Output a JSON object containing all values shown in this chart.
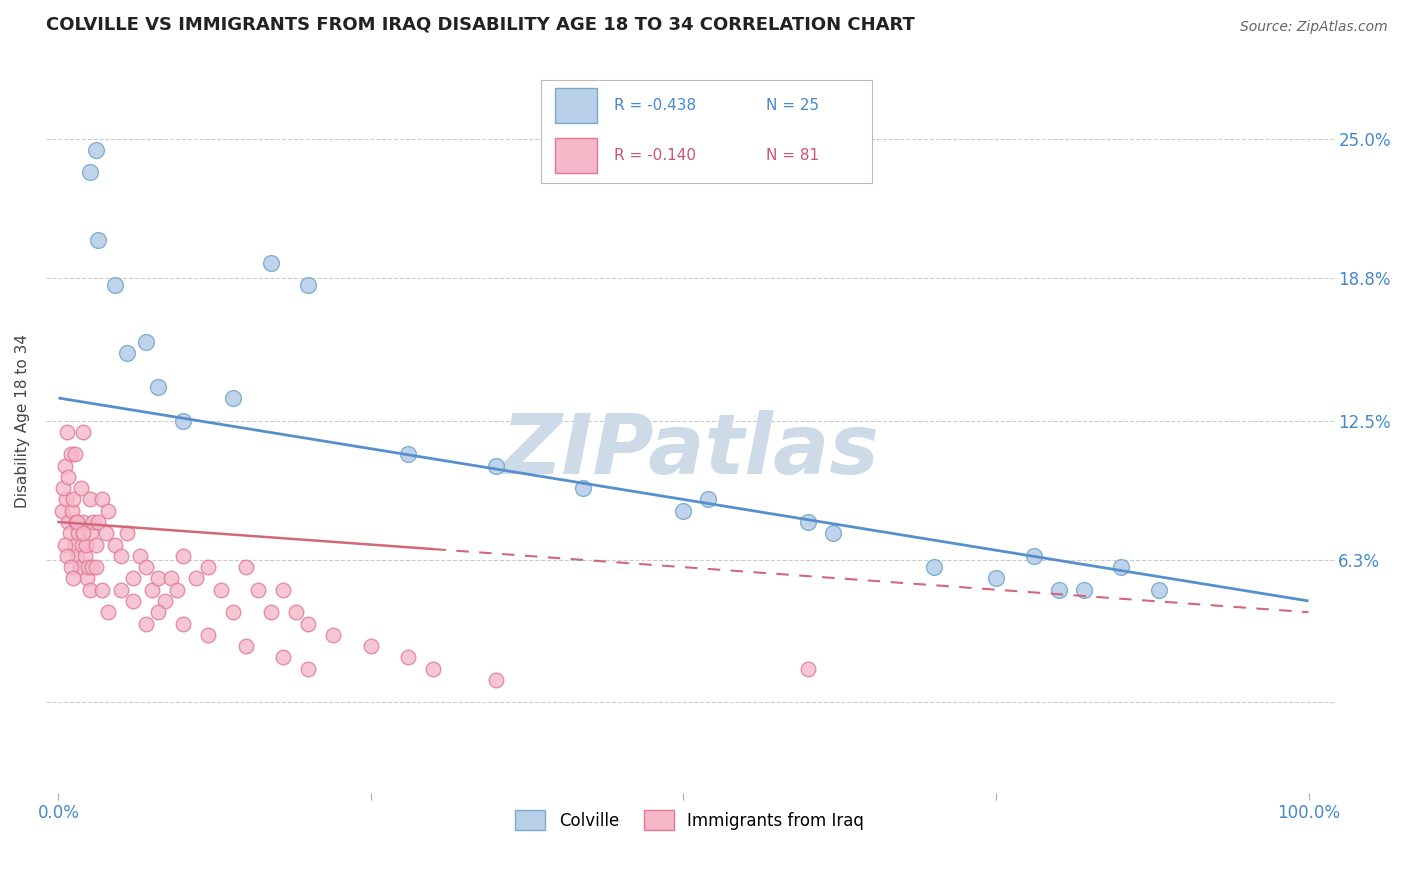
{
  "title": "COLVILLE VS IMMIGRANTS FROM IRAQ DISABILITY AGE 18 TO 34 CORRELATION CHART",
  "source": "Source: ZipAtlas.com",
  "ylabel": "Disability Age 18 to 34",
  "colville_color": "#b8d0e8",
  "colville_edge": "#7aaad0",
  "iraq_color": "#f5b8c8",
  "iraq_edge": "#e07898",
  "blue_line_color": "#5590cc",
  "pink_line_color": "#d06878",
  "watermark": "ZIPatlas",
  "watermark_color": "#cddbe8",
  "legend_R_colville": "R = -0.438",
  "legend_N_colville": "N = 25",
  "legend_R_iraq": "R = -0.140",
  "legend_N_iraq": "N = 81",
  "colville_label": "Colville",
  "iraq_label": "Immigrants from Iraq",
  "blue_text_color": "#4488cc",
  "pink_text_color": "#cc5577",
  "colville_x": [
    2.5,
    3.0,
    3.2,
    4.5,
    5.5,
    7.0,
    8.0,
    10.0,
    14.0,
    17.0,
    20.0,
    28.0,
    35.0,
    42.0,
    50.0,
    52.0,
    60.0,
    62.0,
    70.0,
    75.0,
    78.0,
    80.0,
    82.0,
    85.0,
    88.0
  ],
  "colville_y": [
    23.5,
    24.5,
    20.5,
    18.5,
    15.5,
    16.0,
    14.0,
    12.5,
    13.5,
    19.5,
    18.5,
    11.0,
    10.5,
    9.5,
    8.5,
    9.0,
    8.0,
    7.5,
    6.0,
    5.5,
    6.5,
    5.0,
    5.0,
    6.0,
    5.0
  ],
  "iraq_x": [
    0.3,
    0.5,
    0.6,
    0.7,
    0.8,
    0.9,
    1.0,
    1.1,
    1.2,
    1.3,
    1.4,
    1.5,
    1.6,
    1.7,
    1.8,
    1.9,
    2.0,
    2.1,
    2.2,
    2.3,
    2.4,
    2.5,
    2.6,
    2.7,
    2.8,
    3.0,
    3.2,
    3.5,
    3.8,
    4.0,
    4.5,
    5.0,
    5.5,
    6.0,
    6.5,
    7.0,
    7.5,
    8.0,
    8.5,
    9.0,
    9.5,
    10.0,
    11.0,
    12.0,
    13.0,
    14.0,
    15.0,
    16.0,
    17.0,
    18.0,
    19.0,
    20.0,
    0.4,
    0.5,
    0.7,
    1.0,
    1.2,
    1.5,
    2.0,
    2.5,
    3.0,
    3.5,
    4.0,
    5.0,
    6.0,
    7.0,
    8.0,
    10.0,
    12.0,
    15.0,
    18.0,
    20.0,
    22.0,
    25.0,
    28.0,
    30.0,
    35.0,
    60.0,
    0.8,
    1.3,
    2.0
  ],
  "iraq_y": [
    8.5,
    10.5,
    9.0,
    12.0,
    8.0,
    7.5,
    11.0,
    8.5,
    9.0,
    7.0,
    8.0,
    6.5,
    7.5,
    6.0,
    9.5,
    7.0,
    8.0,
    6.5,
    7.0,
    5.5,
    6.0,
    9.0,
    7.5,
    6.0,
    8.0,
    7.0,
    8.0,
    9.0,
    7.5,
    8.5,
    7.0,
    6.5,
    7.5,
    5.5,
    6.5,
    6.0,
    5.0,
    5.5,
    4.5,
    5.5,
    5.0,
    6.5,
    5.5,
    6.0,
    5.0,
    4.0,
    6.0,
    5.0,
    4.0,
    5.0,
    4.0,
    3.5,
    9.5,
    7.0,
    6.5,
    6.0,
    5.5,
    8.0,
    7.5,
    5.0,
    6.0,
    5.0,
    4.0,
    5.0,
    4.5,
    3.5,
    4.0,
    3.5,
    3.0,
    2.5,
    2.0,
    1.5,
    3.0,
    2.5,
    2.0,
    1.5,
    1.0,
    1.5,
    10.0,
    11.0,
    12.0
  ],
  "blue_line_x0": 0,
  "blue_line_y0": 13.5,
  "blue_line_x1": 100,
  "blue_line_y1": 4.5,
  "pink_solid_x0": 0,
  "pink_solid_y0": 8.0,
  "pink_solid_x1": 30,
  "pink_solid_y1": 6.8,
  "pink_dashed_x0": 30,
  "pink_dashed_y0": 6.8,
  "pink_dashed_x1": 100,
  "pink_dashed_y1": 4.0,
  "xlim": [
    -1,
    102
  ],
  "ylim": [
    -4,
    29
  ],
  "ytick_positions": [
    0,
    6.3,
    12.5,
    18.8,
    25.0
  ],
  "ytick_right_labels": [
    "",
    "6.3%",
    "12.5%",
    "18.8%",
    "25.0%"
  ],
  "xtick_positions": [
    0,
    25,
    50,
    75,
    100
  ],
  "xtick_left_label": "0.0%",
  "xtick_right_label": "100.0%"
}
